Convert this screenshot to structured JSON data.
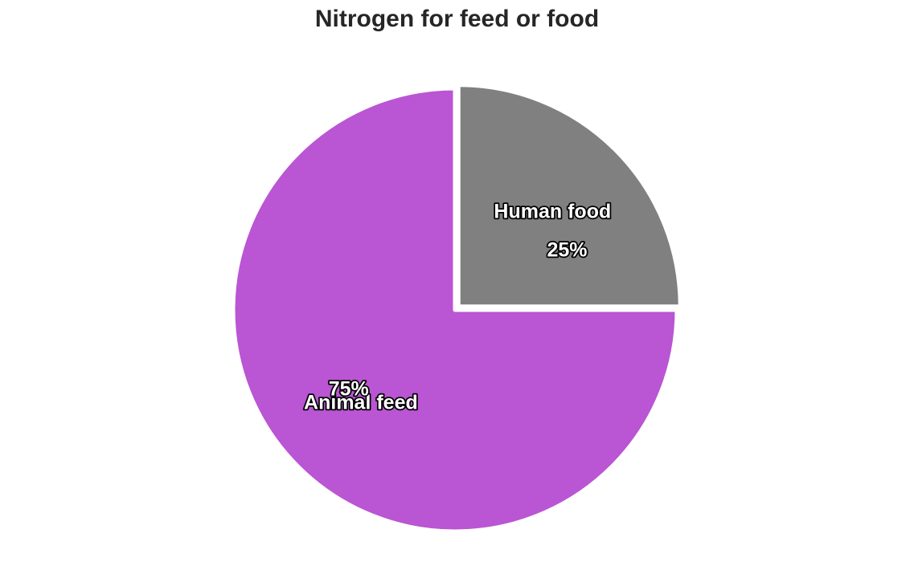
{
  "chart_data": {
    "type": "pie",
    "title": "Nitrogen for feed or food",
    "slices": [
      {
        "label": "Human food",
        "value": 25,
        "value_label": "25%",
        "color": "#808080",
        "exploded": true
      },
      {
        "label": "Animal feed",
        "value": 75,
        "value_label": "75%",
        "color": "#ba55d3",
        "exploded": false
      }
    ],
    "start_angle_deg": 90,
    "direction": "clockwise",
    "legend": "none",
    "grid": false
  }
}
